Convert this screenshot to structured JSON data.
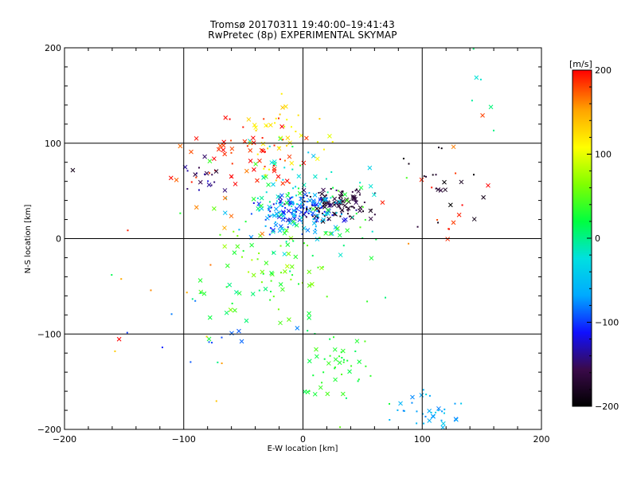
{
  "chart_data": {
    "type": "scatter",
    "title": "Tromsø 20170311 19:40:00–19:41:43",
    "subtitle": "RwPretec (8p) EXPERIMENTAL SKYMAP",
    "xlabel": "E-W location [km]",
    "ylabel": "N-S location [km]",
    "xlim": [
      -200,
      200
    ],
    "ylim": [
      -200,
      200
    ],
    "xticks": [
      -200,
      -100,
      0,
      100,
      200
    ],
    "yticks": [
      -200,
      -100,
      0,
      100,
      200
    ],
    "x_tick_labels": [
      "−200",
      "−100",
      "0",
      "100",
      "200"
    ],
    "y_tick_labels": [
      "−200",
      "−100",
      "0",
      "100",
      "200"
    ],
    "grid": true,
    "colorbar": {
      "label": "[m/s]",
      "range": [
        -200,
        200
      ],
      "ticks": [
        200,
        100,
        0,
        -100,
        -200
      ],
      "tick_labels": [
        "200",
        "100",
        "0",
        "−100",
        "−200"
      ],
      "colormap": [
        "#000000",
        "#3a0a4a",
        "#1010ff",
        "#00aaff",
        "#00e0e0",
        "#00ff40",
        "#80ff00",
        "#ffff00",
        "#ffa500",
        "#ff0000"
      ]
    },
    "markers": [
      "x",
      "."
    ],
    "clusters": [
      {
        "velocity": -170,
        "center": [
          28,
          35
        ],
        "spread": [
          15,
          8
        ],
        "count": 110
      },
      {
        "velocity": -110,
        "center": [
          -5,
          28
        ],
        "spread": [
          18,
          9
        ],
        "count": 80
      },
      {
        "velocity": -60,
        "center": [
          -5,
          25
        ],
        "spread": [
          22,
          10
        ],
        "count": 70
      },
      {
        "velocity": -20,
        "center": [
          0,
          40
        ],
        "spread": [
          30,
          25
        ],
        "count": 60
      },
      {
        "velocity": 30,
        "center": [
          -10,
          15
        ],
        "spread": [
          40,
          30
        ],
        "count": 60
      },
      {
        "velocity": 60,
        "center": [
          -30,
          -40
        ],
        "spread": [
          30,
          25
        ],
        "count": 40
      },
      {
        "velocity": 120,
        "center": [
          -20,
          110
        ],
        "spread": [
          20,
          20
        ],
        "count": 40
      },
      {
        "velocity": 190,
        "center": [
          -50,
          90
        ],
        "spread": [
          30,
          20
        ],
        "count": 60
      },
      {
        "velocity": -140,
        "center": [
          -85,
          65
        ],
        "spread": [
          10,
          8
        ],
        "count": 18
      },
      {
        "velocity": 30,
        "center": [
          30,
          -130
        ],
        "spread": [
          15,
          20
        ],
        "count": 45
      },
      {
        "velocity": -60,
        "center": [
          105,
          -180
        ],
        "spread": [
          15,
          12
        ],
        "count": 35
      },
      {
        "velocity": -180,
        "center": [
          115,
          55
        ],
        "spread": [
          20,
          25
        ],
        "count": 20
      },
      {
        "velocity": 190,
        "center": [
          120,
          40
        ],
        "spread": [
          30,
          30
        ],
        "count": 15
      },
      {
        "velocity": 20,
        "center": [
          -40,
          -60
        ],
        "spread": [
          40,
          25
        ],
        "count": 30
      },
      {
        "velocity": -90,
        "center": [
          -80,
          -100
        ],
        "spread": [
          40,
          20
        ],
        "count": 12
      },
      {
        "velocity": 160,
        "center": [
          -110,
          -70
        ],
        "spread": [
          40,
          50
        ],
        "count": 12
      },
      {
        "velocity": -5,
        "center": [
          150,
          150
        ],
        "spread": [
          20,
          20
        ],
        "count": 6
      },
      {
        "velocity": -200,
        "center": [
          -195,
          70
        ],
        "spread": [
          2,
          2
        ],
        "count": 1
      },
      {
        "velocity": 200,
        "center": [
          -160,
          -105
        ],
        "spread": [
          2,
          2
        ],
        "count": 1
      }
    ]
  }
}
